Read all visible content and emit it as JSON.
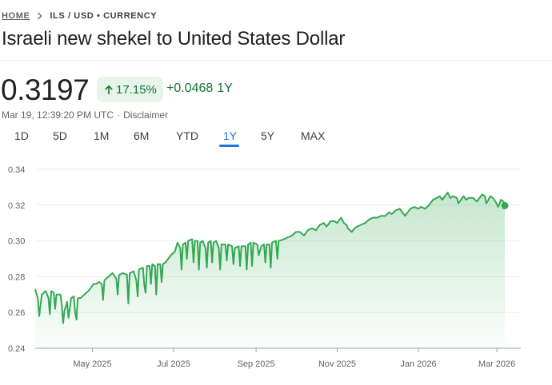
{
  "breadcrumb": {
    "home": "HOME",
    "path": "ILS / USD • CURRENCY"
  },
  "title": "Israeli new shekel to United States Dollar",
  "price": "0.3197",
  "change": {
    "percent": "17.15%",
    "amount": "+0.0468",
    "period": "1Y"
  },
  "meta": {
    "timestamp": "Mar 19, 12:39:20 PM UTC",
    "separator": "·",
    "disclaimer": "Disclaimer"
  },
  "ranges": [
    "1D",
    "5D",
    "1M",
    "6M",
    "YTD",
    "1Y",
    "5Y",
    "MAX"
  ],
  "active_range": "1Y",
  "colors": {
    "positive": "#137333",
    "line": "#34a853",
    "accent": "#1a73e8",
    "badge_bg": "#e6f4ea"
  },
  "icons": {
    "breadcrumb_separator": "chevron-right-icon",
    "change_direction": "arrow-up-icon"
  },
  "chart_data": {
    "type": "area",
    "title": "ILS / USD",
    "xlabel": "",
    "ylabel": "",
    "ylim": [
      0.24,
      0.34
    ],
    "y_ticks": [
      0.24,
      0.26,
      0.28,
      0.3,
      0.32,
      0.34
    ],
    "y_tick_labels": [
      "0.24",
      "0.26",
      "0.28",
      "0.30",
      "0.32",
      "0.34"
    ],
    "x_tick_labels": [
      "May 2025",
      "Jul 2025",
      "Sep 2025",
      "Nov 2025",
      "Jan 2026",
      "Mar 2026"
    ],
    "x_tick_days": [
      43,
      104,
      166,
      227,
      288,
      347
    ],
    "x_range_days": [
      0,
      365
    ],
    "grid": true,
    "series": [
      {
        "name": "ILS/USD",
        "points": [
          [
            0,
            0.273
          ],
          [
            2,
            0.268
          ],
          [
            3,
            0.258
          ],
          [
            5,
            0.27
          ],
          [
            8,
            0.272
          ],
          [
            10,
            0.268
          ],
          [
            11,
            0.259
          ],
          [
            12,
            0.272
          ],
          [
            14,
            0.271
          ],
          [
            15,
            0.262
          ],
          [
            16,
            0.27
          ],
          [
            19,
            0.27
          ],
          [
            20,
            0.264
          ],
          [
            21,
            0.254
          ],
          [
            22,
            0.261
          ],
          [
            24,
            0.266
          ],
          [
            25,
            0.257
          ],
          [
            26,
            0.262
          ],
          [
            27,
            0.268
          ],
          [
            29,
            0.269
          ],
          [
            30,
            0.26
          ],
          [
            31,
            0.256
          ],
          [
            32,
            0.268
          ],
          [
            34,
            0.268
          ],
          [
            37,
            0.27
          ],
          [
            40,
            0.272
          ],
          [
            42,
            0.274
          ],
          [
            44,
            0.276
          ],
          [
            46,
            0.276
          ],
          [
            48,
            0.277
          ],
          [
            50,
            0.276
          ],
          [
            51,
            0.267
          ],
          [
            52,
            0.278
          ],
          [
            55,
            0.28
          ],
          [
            58,
            0.282
          ],
          [
            61,
            0.279
          ],
          [
            62,
            0.27
          ],
          [
            63,
            0.281
          ],
          [
            66,
            0.282
          ],
          [
            69,
            0.281
          ],
          [
            70,
            0.265
          ],
          [
            71,
            0.282
          ],
          [
            74,
            0.283
          ],
          [
            76,
            0.278
          ],
          [
            77,
            0.269
          ],
          [
            78,
            0.284
          ],
          [
            81,
            0.285
          ],
          [
            82,
            0.275
          ],
          [
            83,
            0.271
          ],
          [
            84,
            0.286
          ],
          [
            86,
            0.286
          ],
          [
            87,
            0.276
          ],
          [
            88,
            0.287
          ],
          [
            90,
            0.286
          ],
          [
            91,
            0.27
          ],
          [
            92,
            0.287
          ],
          [
            94,
            0.287
          ],
          [
            95,
            0.277
          ],
          [
            96,
            0.287
          ],
          [
            98,
            0.288
          ],
          [
            100,
            0.29
          ],
          [
            102,
            0.292
          ],
          [
            105,
            0.294
          ],
          [
            107,
            0.299
          ],
          [
            109,
            0.296
          ],
          [
            110,
            0.284
          ],
          [
            111,
            0.298
          ],
          [
            113,
            0.299
          ],
          [
            114,
            0.29
          ],
          [
            115,
            0.3
          ],
          [
            118,
            0.301
          ],
          [
            119,
            0.288
          ],
          [
            120,
            0.3
          ],
          [
            122,
            0.3
          ],
          [
            123,
            0.284
          ],
          [
            124,
            0.299
          ],
          [
            126,
            0.3
          ],
          [
            128,
            0.296
          ],
          [
            129,
            0.285
          ],
          [
            130,
            0.299
          ],
          [
            132,
            0.3
          ],
          [
            133,
            0.288
          ],
          [
            134,
            0.299
          ],
          [
            136,
            0.3
          ],
          [
            138,
            0.296
          ],
          [
            139,
            0.284
          ],
          [
            140,
            0.298
          ],
          [
            143,
            0.298
          ],
          [
            144,
            0.289
          ],
          [
            145,
            0.298
          ],
          [
            148,
            0.297
          ],
          [
            149,
            0.287
          ],
          [
            150,
            0.296
          ],
          [
            153,
            0.297
          ],
          [
            154,
            0.286
          ],
          [
            155,
            0.297
          ],
          [
            158,
            0.297
          ],
          [
            159,
            0.284
          ],
          [
            160,
            0.298
          ],
          [
            162,
            0.299
          ],
          [
            163,
            0.286
          ],
          [
            164,
            0.299
          ],
          [
            167,
            0.298
          ],
          [
            168,
            0.292
          ],
          [
            170,
            0.297
          ],
          [
            172,
            0.298
          ],
          [
            173,
            0.288
          ],
          [
            174,
            0.298
          ],
          [
            176,
            0.298
          ],
          [
            177,
            0.285
          ],
          [
            178,
            0.299
          ],
          [
            181,
            0.3
          ],
          [
            182,
            0.29
          ],
          [
            183,
            0.3
          ],
          [
            187,
            0.301
          ],
          [
            190,
            0.302
          ],
          [
            193,
            0.303
          ],
          [
            196,
            0.305
          ],
          [
            199,
            0.305
          ],
          [
            202,
            0.303
          ],
          [
            205,
            0.306
          ],
          [
            208,
            0.307
          ],
          [
            211,
            0.306
          ],
          [
            214,
            0.309
          ],
          [
            217,
            0.31
          ],
          [
            219,
            0.308
          ],
          [
            222,
            0.311
          ],
          [
            225,
            0.311
          ],
          [
            227,
            0.31
          ],
          [
            230,
            0.313
          ],
          [
            232,
            0.31
          ],
          [
            234,
            0.309
          ],
          [
            235,
            0.307
          ],
          [
            238,
            0.305
          ],
          [
            240,
            0.307
          ],
          [
            242,
            0.308
          ],
          [
            245,
            0.309
          ],
          [
            248,
            0.31
          ],
          [
            251,
            0.312
          ],
          [
            254,
            0.313
          ],
          [
            257,
            0.313
          ],
          [
            260,
            0.314
          ],
          [
            263,
            0.314
          ],
          [
            266,
            0.316
          ],
          [
            268,
            0.315
          ],
          [
            271,
            0.317
          ],
          [
            274,
            0.318
          ],
          [
            276,
            0.316
          ],
          [
            278,
            0.314
          ],
          [
            280,
            0.316
          ],
          [
            282,
            0.318
          ],
          [
            285,
            0.319
          ],
          [
            288,
            0.318
          ],
          [
            290,
            0.319
          ],
          [
            293,
            0.318
          ],
          [
            296,
            0.32
          ],
          [
            299,
            0.323
          ],
          [
            302,
            0.324
          ],
          [
            304,
            0.325
          ],
          [
            306,
            0.323
          ],
          [
            308,
            0.325
          ],
          [
            310,
            0.327
          ],
          [
            312,
            0.324
          ],
          [
            314,
            0.325
          ],
          [
            317,
            0.324
          ],
          [
            318,
            0.321
          ],
          [
            320,
            0.323
          ],
          [
            322,
            0.325
          ],
          [
            324,
            0.323
          ],
          [
            326,
            0.324
          ],
          [
            329,
            0.324
          ],
          [
            332,
            0.322
          ],
          [
            334,
            0.324
          ],
          [
            336,
            0.326
          ],
          [
            338,
            0.325
          ],
          [
            339,
            0.321
          ],
          [
            340,
            0.322
          ],
          [
            342,
            0.325
          ],
          [
            344,
            0.324
          ],
          [
            346,
            0.322
          ],
          [
            348,
            0.319
          ],
          [
            350,
            0.323
          ],
          [
            352,
            0.322
          ],
          [
            353,
            0.3197
          ]
        ]
      }
    ]
  }
}
